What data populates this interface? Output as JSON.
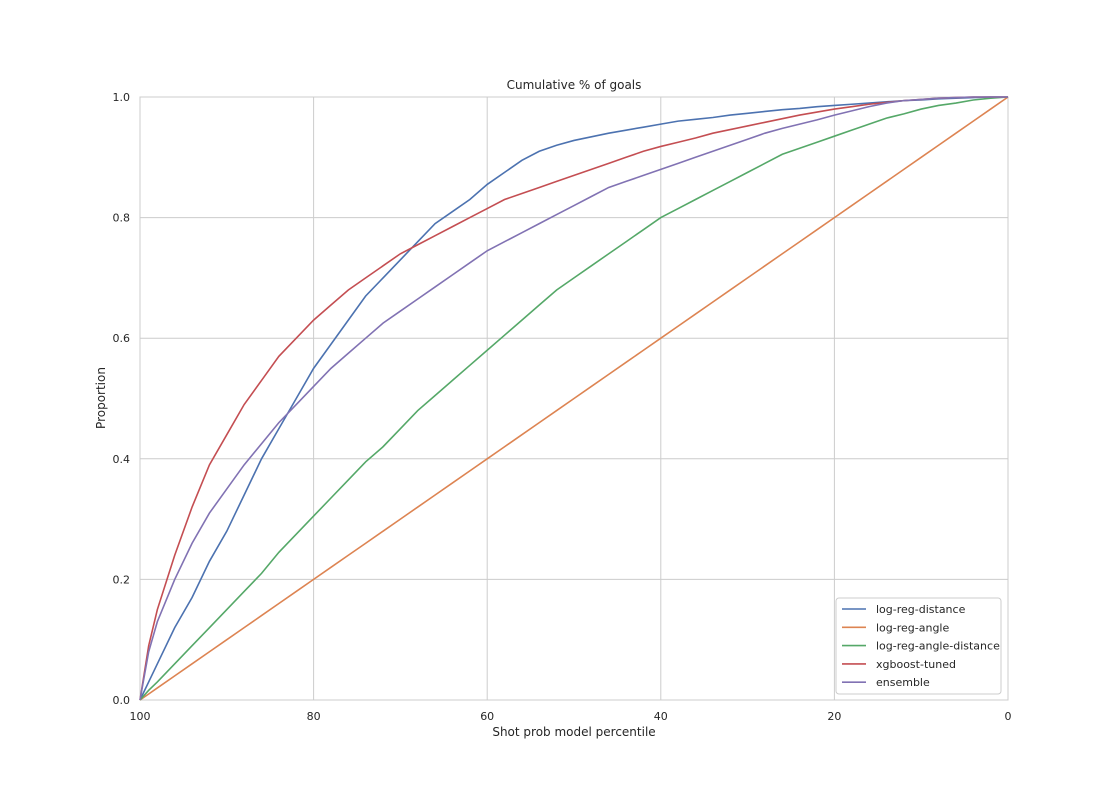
{
  "chart_data": {
    "type": "line",
    "title": "Cumulative % of goals",
    "xlabel": "Shot prob model percentile",
    "ylabel": "Proportion",
    "xlim": [
      100,
      0
    ],
    "ylim": [
      0,
      1.0
    ],
    "xticks": [
      "100",
      "80",
      "60",
      "40",
      "20",
      "0"
    ],
    "yticks": [
      "0.0",
      "0.2",
      "0.4",
      "0.6",
      "0.8",
      "1.0"
    ],
    "grid": true,
    "legend_position": "lower-right",
    "x": [
      100,
      99,
      98,
      96,
      94,
      92,
      90,
      88,
      86,
      84,
      82,
      80,
      78,
      76,
      74,
      72,
      70,
      68,
      66,
      64,
      62,
      60,
      58,
      56,
      54,
      52,
      50,
      48,
      46,
      44,
      42,
      40,
      38,
      36,
      34,
      32,
      30,
      28,
      26,
      24,
      22,
      20,
      18,
      16,
      14,
      12,
      10,
      8,
      6,
      4,
      2,
      0
    ],
    "series": [
      {
        "name": "log-reg-distance",
        "color": "#4c72b0",
        "values": [
          0.0,
          0.03,
          0.06,
          0.12,
          0.17,
          0.23,
          0.28,
          0.34,
          0.4,
          0.45,
          0.5,
          0.55,
          0.59,
          0.63,
          0.67,
          0.7,
          0.73,
          0.76,
          0.79,
          0.81,
          0.83,
          0.855,
          0.875,
          0.895,
          0.91,
          0.92,
          0.928,
          0.934,
          0.94,
          0.945,
          0.95,
          0.955,
          0.96,
          0.963,
          0.966,
          0.97,
          0.973,
          0.976,
          0.979,
          0.981,
          0.984,
          0.986,
          0.988,
          0.99,
          0.992,
          0.994,
          0.995,
          0.997,
          0.998,
          0.999,
          1.0,
          1.0
        ]
      },
      {
        "name": "log-reg-angle",
        "color": "#dd8452",
        "values": [
          0.0,
          0.01,
          0.02,
          0.04,
          0.06,
          0.08,
          0.1,
          0.12,
          0.14,
          0.16,
          0.18,
          0.2,
          0.22,
          0.24,
          0.26,
          0.28,
          0.3,
          0.32,
          0.34,
          0.36,
          0.38,
          0.4,
          0.42,
          0.44,
          0.46,
          0.48,
          0.5,
          0.52,
          0.54,
          0.56,
          0.58,
          0.6,
          0.62,
          0.64,
          0.66,
          0.68,
          0.7,
          0.72,
          0.74,
          0.76,
          0.78,
          0.8,
          0.82,
          0.84,
          0.86,
          0.88,
          0.9,
          0.92,
          0.94,
          0.96,
          0.98,
          1.0
        ]
      },
      {
        "name": "log-reg-angle-distance",
        "color": "#55a868",
        "values": [
          0.0,
          0.016,
          0.03,
          0.06,
          0.09,
          0.12,
          0.15,
          0.18,
          0.21,
          0.245,
          0.275,
          0.305,
          0.335,
          0.365,
          0.395,
          0.42,
          0.45,
          0.48,
          0.505,
          0.53,
          0.555,
          0.58,
          0.605,
          0.63,
          0.655,
          0.68,
          0.7,
          0.72,
          0.74,
          0.76,
          0.78,
          0.8,
          0.815,
          0.83,
          0.845,
          0.86,
          0.875,
          0.89,
          0.905,
          0.915,
          0.925,
          0.935,
          0.945,
          0.955,
          0.965,
          0.972,
          0.98,
          0.986,
          0.99,
          0.995,
          0.998,
          1.0
        ]
      },
      {
        "name": "xgboost-tuned",
        "color": "#c44e52",
        "values": [
          0.0,
          0.09,
          0.15,
          0.24,
          0.32,
          0.39,
          0.44,
          0.49,
          0.53,
          0.57,
          0.6,
          0.63,
          0.655,
          0.68,
          0.7,
          0.72,
          0.74,
          0.755,
          0.77,
          0.785,
          0.8,
          0.815,
          0.83,
          0.84,
          0.85,
          0.86,
          0.87,
          0.88,
          0.89,
          0.9,
          0.91,
          0.918,
          0.925,
          0.932,
          0.94,
          0.946,
          0.952,
          0.958,
          0.964,
          0.97,
          0.975,
          0.98,
          0.984,
          0.988,
          0.991,
          0.994,
          0.996,
          0.998,
          0.999,
          1.0,
          1.0,
          1.0
        ]
      },
      {
        "name": "ensemble",
        "color": "#8172b3",
        "values": [
          0.0,
          0.08,
          0.13,
          0.2,
          0.26,
          0.31,
          0.35,
          0.39,
          0.425,
          0.46,
          0.49,
          0.52,
          0.55,
          0.575,
          0.6,
          0.625,
          0.645,
          0.665,
          0.685,
          0.705,
          0.725,
          0.745,
          0.76,
          0.775,
          0.79,
          0.805,
          0.82,
          0.835,
          0.85,
          0.86,
          0.87,
          0.88,
          0.89,
          0.9,
          0.91,
          0.92,
          0.93,
          0.94,
          0.948,
          0.955,
          0.962,
          0.97,
          0.977,
          0.984,
          0.99,
          0.994,
          0.996,
          0.998,
          0.999,
          1.0,
          1.0,
          1.0
        ]
      }
    ]
  }
}
